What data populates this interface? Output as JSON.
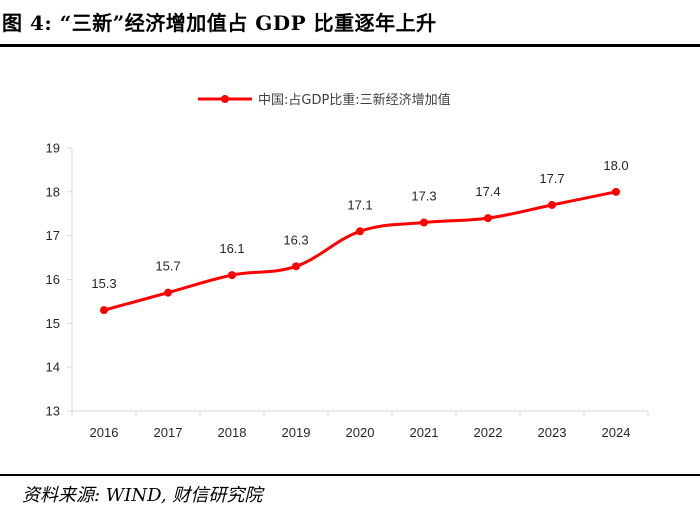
{
  "figure": {
    "title": "图 4: “三新”经济增加值占 GDP 比重逐年上升",
    "source": "资料来源: WIND, 财信研究院"
  },
  "chart_data": {
    "type": "line",
    "title": "",
    "xlabel": "",
    "ylabel": "",
    "categories": [
      "2016",
      "2017",
      "2018",
      "2019",
      "2020",
      "2021",
      "2022",
      "2023",
      "2024"
    ],
    "series": [
      {
        "name": "中国:占GDP比重:三新经济增加值",
        "values": [
          15.3,
          15.7,
          16.1,
          16.3,
          17.1,
          17.3,
          17.4,
          17.7,
          18.0
        ],
        "labels": [
          "15.3",
          "15.7",
          "16.1",
          "16.3",
          "17.1",
          "17.3",
          "17.4",
          "17.7",
          "18.0"
        ],
        "color": "#ff0000"
      }
    ],
    "ylim": [
      13,
      19
    ],
    "yticks": [
      "13",
      "14",
      "15",
      "16",
      "17",
      "18",
      "19"
    ],
    "grid": false,
    "legend": "top-center"
  },
  "colors": {
    "line": "#ff0000",
    "axis": "#d9d9d9",
    "text": "#262626"
  }
}
